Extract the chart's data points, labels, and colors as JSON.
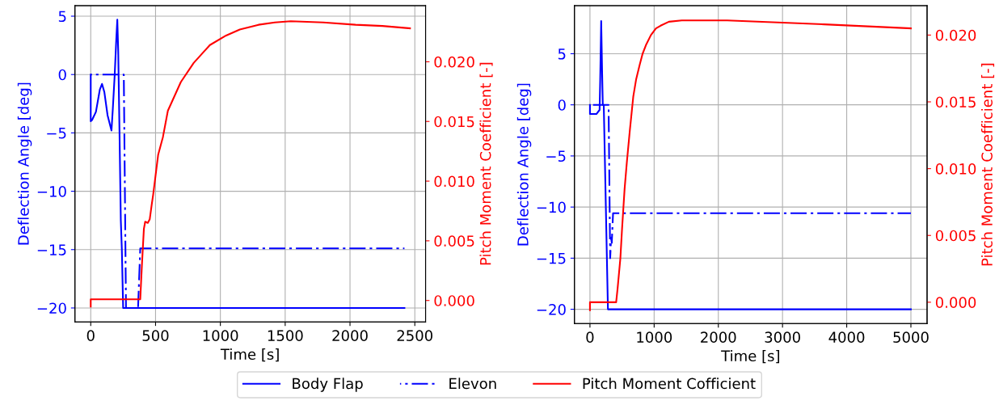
{
  "chart_data": [
    {
      "type": "line",
      "xlabel": "Time [s]",
      "ylabel": "Deflection Angle [deg]",
      "y2label": "Pitch Moment Coefficient [-]",
      "xlim": [
        -122,
        2583
      ],
      "xticks": [
        0,
        500,
        1000,
        1500,
        2000,
        2500
      ],
      "ylim": [
        -21.2,
        5.9
      ],
      "yticks": [
        {
          "value": -20,
          "label": "−20"
        },
        {
          "value": -15,
          "label": "−15"
        },
        {
          "value": -10,
          "label": "−10"
        },
        {
          "value": -5,
          "label": "−5"
        },
        0,
        5
      ],
      "y2lim": [
        -0.0018,
        0.0247
      ],
      "y2ticks": [
        {
          "value": 0,
          "label": "0.000"
        },
        {
          "value": 0.005,
          "label": "0.005"
        },
        {
          "value": 0.01,
          "label": "0.010"
        },
        {
          "value": 0.015,
          "label": "0.015"
        },
        {
          "value": 0.02,
          "label": "0.020"
        }
      ],
      "grid": true,
      "legend": "bottom",
      "series": [
        {
          "name": "Body Flap",
          "color": "#0000ff",
          "line_style": "solid",
          "x": [
            0,
            0,
            10,
            40,
            70,
            87,
            105,
            130,
            160,
            170,
            185,
            197,
            205,
            212,
            222,
            232,
            240,
            250,
            2420
          ],
          "values": [
            0,
            -4,
            -3.9,
            -3.2,
            -1.3,
            -0.8,
            -1.5,
            -3.5,
            -4.8,
            -3,
            0,
            3,
            4.7,
            2,
            -5,
            -12.5,
            -15,
            -20,
            -20
          ]
        },
        {
          "name": "Elevon",
          "color": "#0000ff",
          "line_style": "dashdot",
          "x": [
            0,
            255,
            272,
            365,
            382,
            2420
          ],
          "values": [
            0,
            0,
            -20,
            -20,
            -14.9,
            -14.9
          ]
        },
        {
          "name": "Pitch Moment Cofficient",
          "color": "#ff0000",
          "line_style": "solid",
          "axis": "y2",
          "x": [
            0,
            0,
            382,
            395,
            410,
            420,
            440,
            455,
            470,
            482,
            520,
            557,
            595,
            695,
            794,
            919,
            1044,
            1150,
            1294,
            1420,
            1543,
            1793,
            2043,
            2250,
            2463
          ],
          "values": [
            -0.0005,
            0.0001,
            0.0001,
            0.003,
            0.006,
            0.0066,
            0.0065,
            0.0068,
            0.008,
            0.0089,
            0.0122,
            0.0137,
            0.0159,
            0.0183,
            0.0199,
            0.0214,
            0.0222,
            0.0227,
            0.0231,
            0.0233,
            0.0234,
            0.0233,
            0.0231,
            0.023,
            0.0228
          ]
        }
      ]
    },
    {
      "type": "line",
      "xlabel": "Time [s]",
      "ylabel": "Deflection Angle [deg]",
      "y2label": "Pitch Moment Coefficient [-]",
      "xlim": [
        -242,
        5252
      ],
      "xticks": [
        0,
        1000,
        2000,
        3000,
        4000,
        5000
      ],
      "ylim": [
        -21.4,
        9.7
      ],
      "yticks": [
        {
          "value": -20,
          "label": "−20"
        },
        {
          "value": -15,
          "label": "−15"
        },
        {
          "value": -10,
          "label": "−10"
        },
        {
          "value": -5,
          "label": "−5"
        },
        0,
        5
      ],
      "y2lim": [
        -0.0016,
        0.0222
      ],
      "y2ticks": [
        {
          "value": 0,
          "label": "0.000"
        },
        {
          "value": 0.005,
          "label": "0.005"
        },
        {
          "value": 0.01,
          "label": "0.010"
        },
        {
          "value": 0.015,
          "label": "0.015"
        },
        {
          "value": 0.02,
          "label": "0.020"
        }
      ],
      "grid": true,
      "series": [
        {
          "color": "#0000ff",
          "line_style": "solid",
          "x": [
            0,
            0,
            100,
            150,
            160,
            175,
            190,
            200,
            215,
            280,
            5000
          ],
          "values": [
            0,
            -0.9,
            -0.9,
            -0.5,
            2.5,
            8.2,
            3,
            0,
            0,
            -20,
            -20
          ]
        },
        {
          "color": "#0000ff",
          "line_style": "dashdot",
          "x": [
            0,
            290,
            315,
            330,
            340,
            360,
            5000
          ],
          "values": [
            0,
            0,
            -15,
            -13,
            -13.5,
            -10.6,
            -10.6
          ]
        },
        {
          "color": "#ff0000",
          "line_style": "solid",
          "axis": "y2",
          "x": [
            0,
            0,
            408,
            430,
            474,
            500,
            540,
            575,
            620,
            675,
            720,
            776,
            820,
            877,
            950,
            1028,
            1100,
            1230,
            1431,
            1700,
            2137,
            3649,
            5000
          ],
          "values": [
            -0.0006,
            0,
            0,
            0.001,
            0.0033,
            0.0055,
            0.0085,
            0.0105,
            0.0128,
            0.0154,
            0.0167,
            0.0178,
            0.0186,
            0.0193,
            0.02,
            0.0205,
            0.0207,
            0.021,
            0.0211,
            0.0211,
            0.0211,
            0.0208,
            0.0205
          ]
        }
      ]
    }
  ]
}
